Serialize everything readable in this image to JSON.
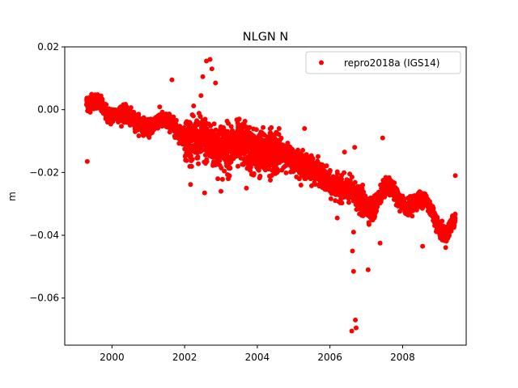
{
  "chart_data": {
    "type": "scatter",
    "title": "NLGN N",
    "xlabel": "",
    "ylabel": "m",
    "xlim": [
      1998.7,
      2009.75
    ],
    "ylim": [
      -0.075,
      0.02
    ],
    "xticks": [
      2000,
      2002,
      2004,
      2006,
      2008
    ],
    "xtick_labels": [
      "2000",
      "2002",
      "2004",
      "2006",
      "2008"
    ],
    "yticks": [
      0.02,
      0.0,
      -0.02,
      -0.04,
      -0.06
    ],
    "ytick_labels": [
      "0.02",
      "0.00",
      "−0.02",
      "−0.04",
      "−0.06"
    ],
    "grid": false,
    "legend_position": "upper-right",
    "series": [
      {
        "name": "repro2018a (IGS14)",
        "color": "#ff0000",
        "marker": "circle",
        "trend": [
          [
            1999.3,
            0.002
          ],
          [
            1999.6,
            0.003
          ],
          [
            1999.9,
            -0.002
          ],
          [
            2000.3,
            -0.001
          ],
          [
            2000.7,
            -0.004
          ],
          [
            2001.0,
            -0.006
          ],
          [
            2001.3,
            -0.003
          ],
          [
            2001.6,
            -0.004
          ],
          [
            2001.9,
            -0.008
          ],
          [
            2002.2,
            -0.01
          ],
          [
            2002.5,
            -0.009
          ],
          [
            2002.8,
            -0.012
          ],
          [
            2003.2,
            -0.012
          ],
          [
            2003.6,
            -0.011
          ],
          [
            2004.0,
            -0.014
          ],
          [
            2004.5,
            -0.013
          ],
          [
            2004.9,
            -0.015
          ],
          [
            2005.3,
            -0.018
          ],
          [
            2005.7,
            -0.02
          ],
          [
            2006.0,
            -0.024
          ],
          [
            2006.3,
            -0.025
          ],
          [
            2006.6,
            -0.026
          ],
          [
            2006.9,
            -0.03
          ],
          [
            2007.2,
            -0.032
          ],
          [
            2007.45,
            -0.025
          ],
          [
            2007.7,
            -0.025
          ],
          [
            2007.9,
            -0.029
          ],
          [
            2008.1,
            -0.031
          ],
          [
            2008.4,
            -0.029
          ],
          [
            2008.6,
            -0.028
          ],
          [
            2008.8,
            -0.032
          ],
          [
            2009.0,
            -0.038
          ],
          [
            2009.2,
            -0.04
          ],
          [
            2009.45,
            -0.034
          ]
        ],
        "outliers": [
          [
            1999.32,
            -0.0165
          ],
          [
            2001.65,
            0.0095
          ],
          [
            2002.45,
            0.0045
          ],
          [
            2002.5,
            0.0105
          ],
          [
            2002.6,
            0.0155
          ],
          [
            2002.7,
            0.016
          ],
          [
            2002.75,
            0.013
          ],
          [
            2002.85,
            0.0085
          ],
          [
            2002.55,
            -0.0265
          ],
          [
            2003.0,
            -0.026
          ],
          [
            2003.2,
            -0.022
          ],
          [
            2003.5,
            -0.005
          ],
          [
            2003.7,
            -0.025
          ],
          [
            2005.3,
            -0.006
          ],
          [
            2006.62,
            -0.045
          ],
          [
            2006.65,
            -0.0515
          ],
          [
            2006.7,
            -0.067
          ],
          [
            2006.72,
            -0.0695
          ],
          [
            2006.6,
            -0.0705
          ],
          [
            2006.65,
            -0.039
          ],
          [
            2006.68,
            -0.012
          ],
          [
            2007.05,
            -0.051
          ],
          [
            2007.38,
            -0.0425
          ],
          [
            2007.45,
            -0.009
          ],
          [
            2008.55,
            -0.0435
          ],
          [
            2009.45,
            -0.021
          ],
          [
            2006.9,
            -0.024
          ],
          [
            2006.2,
            -0.0345
          ],
          [
            2006.4,
            -0.0135
          ],
          [
            2004.6,
            -0.006
          ]
        ]
      }
    ]
  }
}
